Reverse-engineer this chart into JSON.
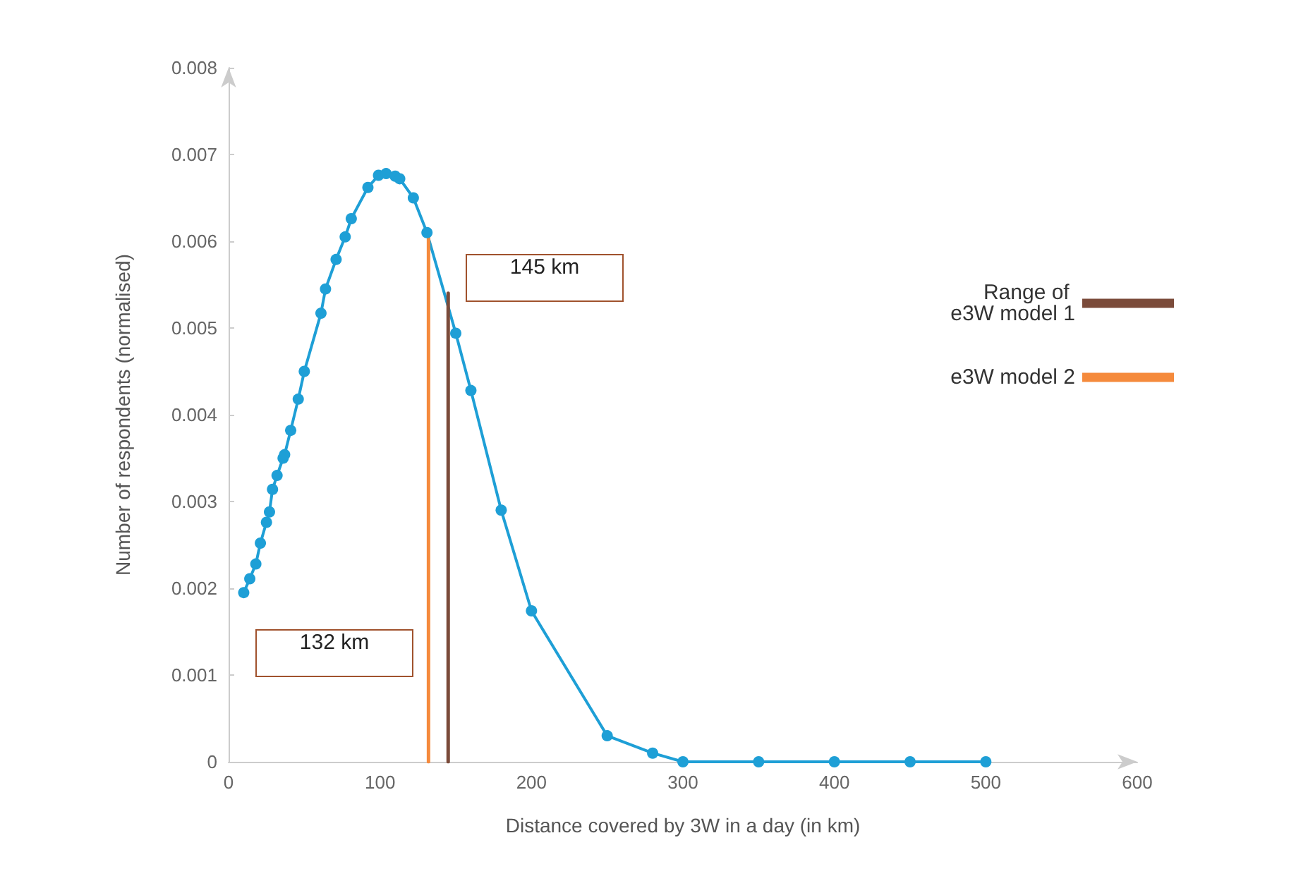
{
  "chart_data": {
    "type": "line",
    "xlabel": "Distance covered by 3W in a day (in km)",
    "ylabel": "Number of respondents (normalised)",
    "xlim": [
      0,
      600
    ],
    "xticks": [
      0,
      100,
      200,
      300,
      400,
      500,
      600
    ],
    "ylim": [
      0,
      0.008
    ],
    "yticks": [
      0,
      0.001,
      0.002,
      0.003,
      0.004,
      0.005,
      0.006,
      0.007,
      0.008
    ],
    "grid": false,
    "legend": "right",
    "marker": "circle",
    "line_style": "solid",
    "series": [
      {
        "color": "#1e9fd6",
        "x": [
          10,
          14,
          18,
          21,
          25,
          27,
          29,
          32,
          36,
          37,
          41,
          46,
          50,
          61,
          64,
          71,
          77,
          81,
          92,
          99,
          104,
          110,
          113,
          122,
          131,
          150,
          160,
          180,
          200,
          250,
          280,
          300,
          350,
          400,
          450,
          500
        ],
        "values": [
          0.00195,
          0.00211,
          0.00228,
          0.00252,
          0.00276,
          0.00288,
          0.00314,
          0.0033,
          0.0035,
          0.00354,
          0.00382,
          0.00418,
          0.0045,
          0.00517,
          0.00545,
          0.00579,
          0.00605,
          0.00626,
          0.00662,
          0.00676,
          0.00678,
          0.00675,
          0.00672,
          0.0065,
          0.0061,
          0.00494,
          0.00428,
          0.0029,
          0.00174,
          0.0003,
          0.0001,
          0,
          0,
          0,
          0,
          0
        ]
      },
      {
        "name": "Range of e3W model 1",
        "color": "#7b4b3a",
        "marker": "none",
        "x": [
          145,
          145
        ],
        "values": [
          0,
          0.0054
        ]
      },
      {
        "name": "e3W model 2",
        "color": "#f58a3c",
        "marker": "none",
        "x": [
          132,
          132
        ],
        "values": [
          0,
          0.00605
        ]
      }
    ],
    "annotations": [
      "145 km",
      "132 km"
    ]
  }
}
